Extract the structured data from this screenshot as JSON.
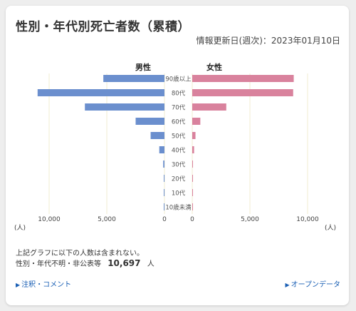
{
  "header": {
    "title": "性別・年代別死亡者数（累積）",
    "updated": "情報更新日(週次)：2023年01月10日"
  },
  "chart_data": {
    "type": "bar",
    "orientation": "horizontal-population-pyramid",
    "categories": [
      "90歳以上",
      "80代",
      "70代",
      "60代",
      "50代",
      "40代",
      "30代",
      "20代",
      "10代",
      "10歳未満"
    ],
    "series": [
      {
        "name": "男性",
        "values": [
          5300,
          11000,
          6900,
          2500,
          1200,
          450,
          110,
          40,
          5,
          10
        ]
      },
      {
        "name": "女性",
        "values": [
          8800,
          8750,
          2950,
          700,
          280,
          160,
          50,
          25,
          5,
          10
        ]
      }
    ],
    "x_ticks_male": [
      "10,000",
      "5,000",
      "0"
    ],
    "x_ticks_female": [
      "0",
      "5,000",
      "10,000"
    ],
    "xlim": [
      0,
      11000
    ],
    "unit": "(人)",
    "grid": "vertical",
    "colors": {
      "male": "#6b8fce",
      "female": "#d9829d",
      "grid": "#f0ecd0"
    }
  },
  "notes": {
    "line1": "上記グラフに以下の人数は含まれない。",
    "line2_label": "性別・年代不明・非公表等",
    "line2_count": "10,697",
    "line2_unit": "人"
  },
  "links": {
    "notes": "注釈・コメント",
    "opendata": "オープンデータ",
    "arrow_icon": "▶"
  }
}
